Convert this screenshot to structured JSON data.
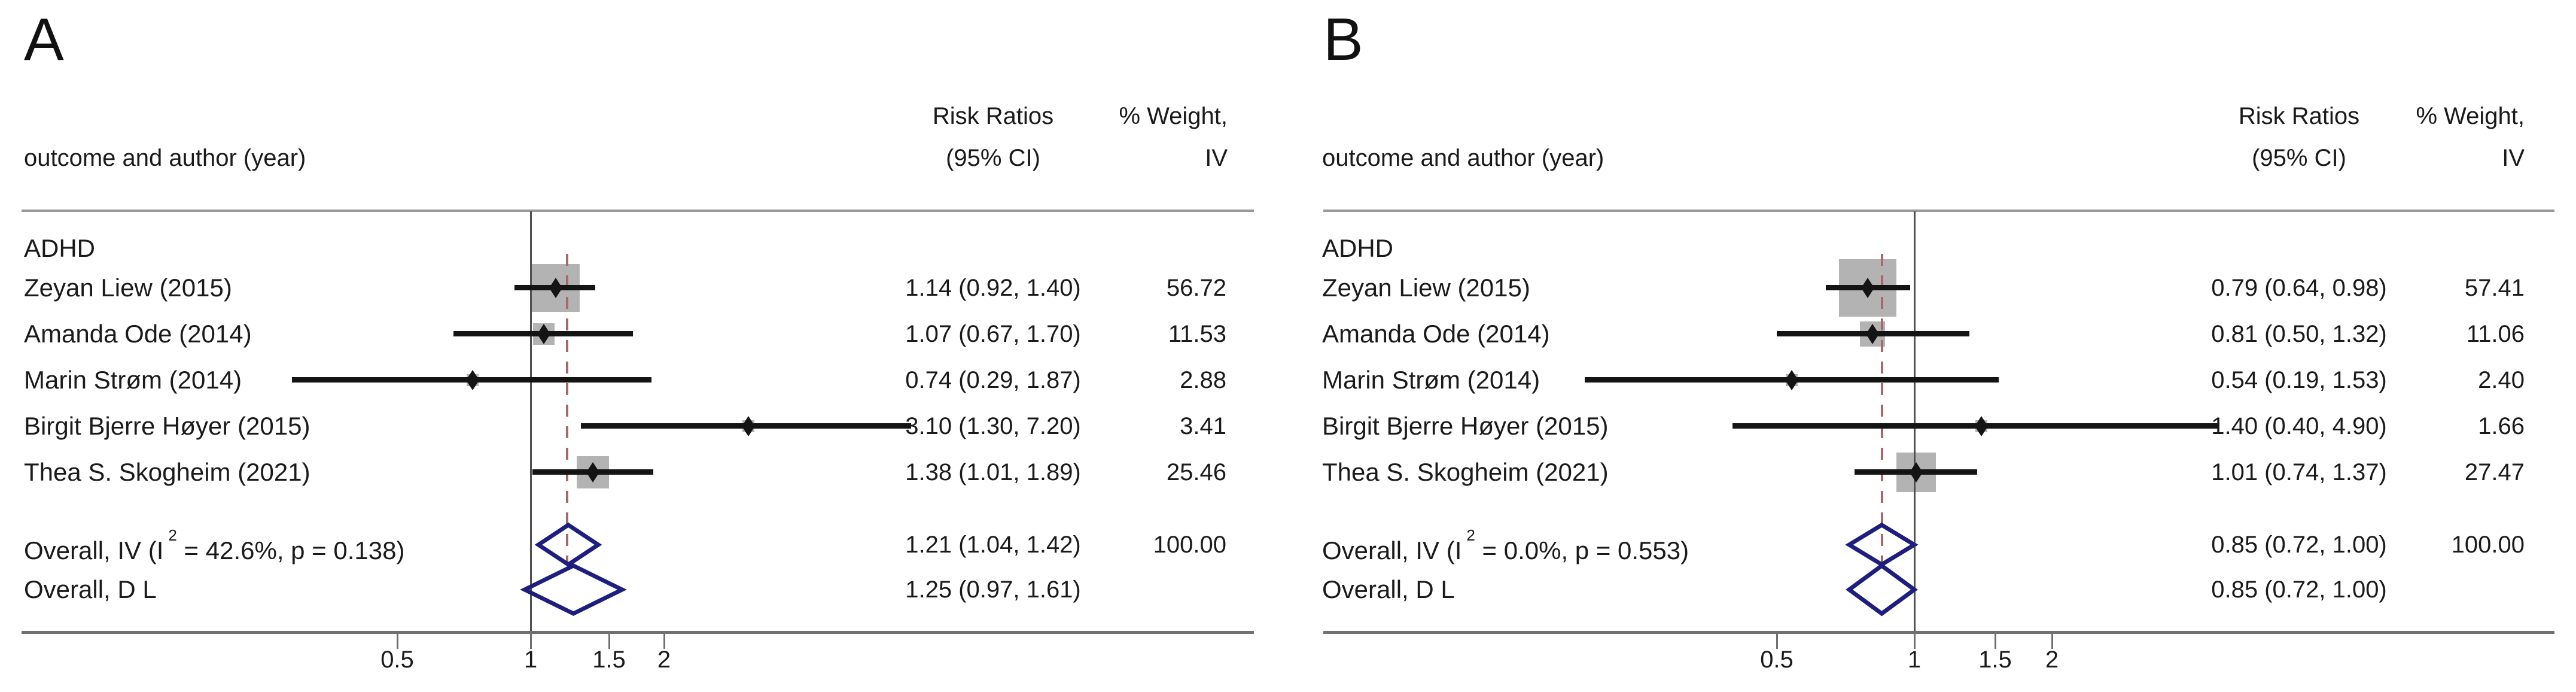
{
  "colors": {
    "square": "#b3b3b3",
    "ci_line": "#141414",
    "diamond_outline": "#1e1e7d",
    "pooled_dash_line": "#ab666a",
    "axis": "#707070",
    "header_rule": "#999999",
    "null_line": "#505050",
    "text": "#1a1a1a"
  },
  "chart_data": [
    {
      "type": "scatter",
      "variant": "forest-plot",
      "panel_label": "A",
      "x_scale": "log",
      "grid": false,
      "legend_position": "none",
      "x_ticks": [
        0.5,
        1,
        1.5,
        2
      ],
      "x_tick_labels": [
        "0.5",
        "1",
        "1.5",
        "2"
      ],
      "null_line_x": 1,
      "pooled_line_x": 1.21,
      "columns": {
        "outcome": "outcome and author (year)",
        "rr_line1": "Risk Ratios",
        "rr_line2": "(95% CI)",
        "weight_line1": "% Weight,",
        "weight_line2": "IV"
      },
      "group_label": "ADHD",
      "studies": [
        {
          "label": "Zeyan Liew (2015)",
          "rr": 1.14,
          "ci": [
            0.92,
            1.4
          ],
          "weight_pct": 56.72,
          "rr_text": "1.14 (0.92, 1.40)",
          "weight_text": "56.72"
        },
        {
          "label": "Amanda Ode (2014)",
          "rr": 1.07,
          "ci": [
            0.67,
            1.7
          ],
          "weight_pct": 11.53,
          "rr_text": "1.07 (0.67, 1.70)",
          "weight_text": "11.53"
        },
        {
          "label": "Marin Strøm (2014)",
          "rr": 0.74,
          "ci": [
            0.29,
            1.87
          ],
          "weight_pct": 2.88,
          "rr_text": "0.74 (0.29, 1.87)",
          "weight_text": "2.88"
        },
        {
          "label": "Birgit Bjerre Høyer (2015)",
          "rr": 3.1,
          "ci": [
            1.3,
            7.2
          ],
          "weight_pct": 3.41,
          "rr_text": "3.10 (1.30, 7.20)",
          "weight_text": "3.41"
        },
        {
          "label": "Thea S. Skogheim (2021)",
          "rr": 1.38,
          "ci": [
            1.01,
            1.89
          ],
          "weight_pct": 25.46,
          "rr_text": "1.38 (1.01, 1.89)",
          "weight_text": "25.46"
        }
      ],
      "overall_iv": {
        "label_prefix": "Overall, IV (I",
        "label_sup": "2",
        "label_suffix": " = 42.6%, p = 0.138)",
        "rr": 1.21,
        "ci": [
          1.04,
          1.42
        ],
        "rr_text": "1.21 (1.04, 1.42)",
        "weight_text": "100.00"
      },
      "overall_dl": {
        "label": "Overall, D L",
        "rr": 1.25,
        "ci": [
          0.97,
          1.61
        ],
        "rr_text": "1.25 (0.97, 1.61)",
        "weight_text": ""
      }
    },
    {
      "type": "scatter",
      "variant": "forest-plot",
      "panel_label": "B",
      "x_scale": "log",
      "grid": false,
      "legend_position": "none",
      "x_ticks": [
        0.5,
        1,
        1.5,
        2
      ],
      "x_tick_labels": [
        "0.5",
        "1",
        "1.5",
        "2"
      ],
      "null_line_x": 1,
      "pooled_line_x": 0.85,
      "columns": {
        "outcome": "outcome and author (year)",
        "rr_line1": "Risk Ratios",
        "rr_line2": "(95% CI)",
        "weight_line1": "% Weight,",
        "weight_line2": "IV"
      },
      "group_label": "ADHD",
      "studies": [
        {
          "label": "Zeyan Liew (2015)",
          "rr": 0.79,
          "ci": [
            0.64,
            0.98
          ],
          "weight_pct": 57.41,
          "rr_text": "0.79 (0.64, 0.98)",
          "weight_text": "57.41"
        },
        {
          "label": "Amanda Ode (2014)",
          "rr": 0.81,
          "ci": [
            0.5,
            1.32
          ],
          "weight_pct": 11.06,
          "rr_text": "0.81 (0.50, 1.32)",
          "weight_text": "11.06"
        },
        {
          "label": "Marin Strøm (2014)",
          "rr": 0.54,
          "ci": [
            0.19,
            1.53
          ],
          "weight_pct": 2.4,
          "rr_text": "0.54 (0.19, 1.53)",
          "weight_text": "2.40"
        },
        {
          "label": "Birgit Bjerre Høyer (2015)",
          "rr": 1.4,
          "ci": [
            0.4,
            4.9
          ],
          "weight_pct": 1.66,
          "rr_text": "1.40 (0.40, 4.90)",
          "weight_text": "1.66"
        },
        {
          "label": "Thea S. Skogheim (2021)",
          "rr": 1.01,
          "ci": [
            0.74,
            1.37
          ],
          "weight_pct": 27.47,
          "rr_text": "1.01 (0.74, 1.37)",
          "weight_text": "27.47"
        }
      ],
      "overall_iv": {
        "label_prefix": "Overall, IV (I",
        "label_sup": "2",
        "label_suffix": " = 0.0%, p = 0.553)",
        "rr": 0.85,
        "ci": [
          0.72,
          1.0
        ],
        "rr_text": "0.85 (0.72, 1.00)",
        "weight_text": "100.00"
      },
      "overall_dl": {
        "label": "Overall, D L",
        "rr": 0.85,
        "ci": [
          0.72,
          1.0
        ],
        "rr_text": "0.85 (0.72, 1.00)",
        "weight_text": ""
      }
    }
  ]
}
